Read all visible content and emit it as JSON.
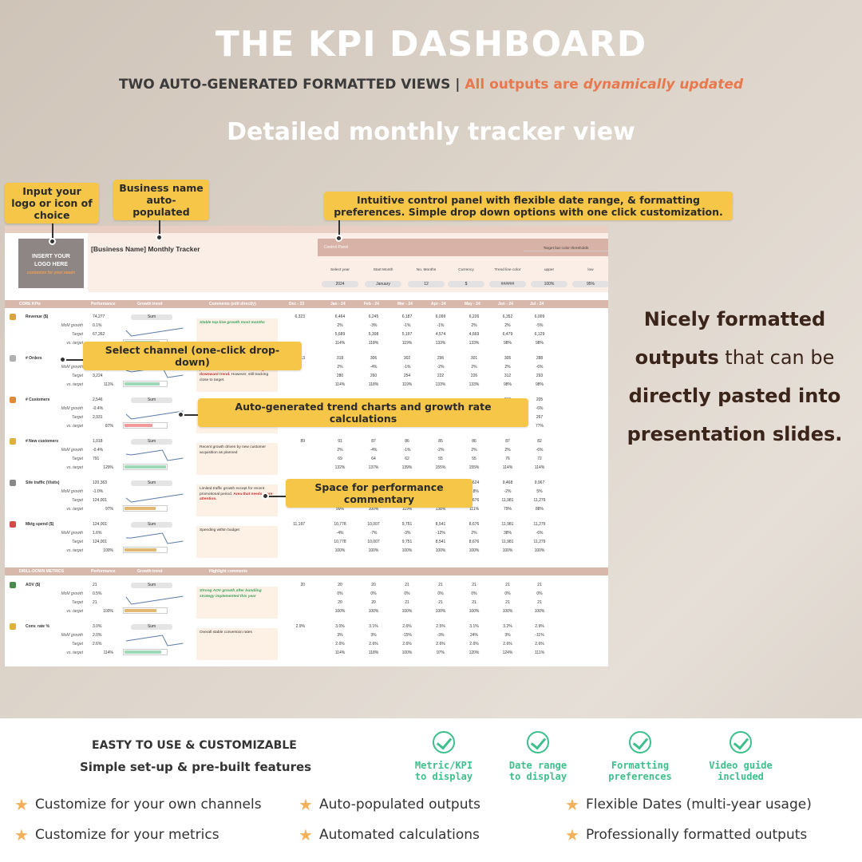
{
  "header": {
    "title": "THE KPI DASHBOARD",
    "subtitle_a": "TWO AUTO-GENERATED FORMATTED  VIEWS | ",
    "subtitle_b": "All outputs are ",
    "subtitle_c": "dynamically updated",
    "view_title": "Detailed monthly tracker view"
  },
  "callouts": {
    "logo": "Input your logo or icon of choice",
    "business": "Business name auto-populated",
    "control": "Intuitive control panel with flexible date range, & formatting preferences. Simple drop down options with one click customization.",
    "channel": "Select channel (one-click drop-down)",
    "trend": "Auto-generated trend charts and growth rate calculations",
    "commentary": "Space for performance commentary"
  },
  "sheet": {
    "logo_line1": "INSERT YOUR",
    "logo_line2": "LOGO HERE",
    "logo_small": "customize for your needs",
    "business_title": "[Business Name] Monthly Tracker",
    "control_panel": {
      "title": "Control Panel",
      "labels": [
        "Select year",
        "Start Month",
        "No. Months",
        "Currency",
        "Trend line color"
      ],
      "values": [
        "2024",
        "January",
        "12",
        "$",
        "######"
      ],
      "threshold_title": "Target bar color thresholds",
      "threshold_labels": [
        "upper",
        "low"
      ],
      "threshold_values": [
        "100%",
        "95%"
      ]
    },
    "core_header": [
      "CORE KPIs",
      "Performance",
      "Growth trend",
      "Comments (edit directly)",
      "Dec - 23",
      "Jan - 24",
      "Feb - 24",
      "Mar - 24",
      "Apr - 24",
      "May - 24",
      "Jun - 24",
      "Jul - 24"
    ],
    "drill_header": [
      "DRILL-DOWN METRICS",
      "Performance",
      "Growth trend",
      "Highlight comments"
    ],
    "sub_labels": [
      "MoM growth",
      "Target",
      "vs. target"
    ],
    "sum_label": "Sum",
    "kpis": [
      {
        "name": "Revenue ($)",
        "icon_color": "#d9a441",
        "perf": [
          "74,277",
          "0.1%",
          "67,262"
        ],
        "pct": 1.1,
        "pct_label": "",
        "dec": "6,323",
        "comment": [
          {
            "t": "Stable top-line growth most months",
            "c": "green"
          }
        ],
        "rows": [
          [
            "6,464",
            "6,245",
            "6,187",
            "6,099",
            "6,226",
            "6,352",
            "6,009"
          ],
          [
            "2%",
            "-3%",
            "-1%",
            "-1%",
            "2%",
            "2%",
            "-5%"
          ],
          [
            "5,689",
            "5,308",
            "5,197",
            "4,574",
            "4,669",
            "6,479",
            "6,129"
          ],
          [
            "114%",
            "118%",
            "119%",
            "133%",
            "133%",
            "98%",
            "98%"
          ]
        ],
        "bar_color": "#9fd9b6"
      },
      {
        "name": "# Orders",
        "icon_color": "#b0b0b0",
        "perf": [
          "3,564",
          "-0.4%",
          "3,224"
        ],
        "pct": 1.11,
        "pct_label": "111%",
        "dec": "313",
        "comment": [
          {
            "t": "Order uptake in October but driven by promotions but otherwise ",
            "c": ""
          },
          {
            "t": "concerning downward trend.",
            "c": "red"
          },
          {
            "t": " However, still tracking close to target.",
            "c": ""
          }
        ],
        "rows": [
          [
            "318",
            "306",
            "302",
            "296",
            "301",
            "305",
            "288"
          ],
          [
            "2%",
            "-4%",
            "-1%",
            "-2%",
            "2%",
            "2%",
            "-6%"
          ],
          [
            "280",
            "260",
            "254",
            "222",
            "226",
            "312",
            "293"
          ],
          [
            "114%",
            "118%",
            "119%",
            "133%",
            "133%",
            "98%",
            "98%"
          ]
        ],
        "bar_color": "#9fd9b6"
      },
      {
        "name": "# Customers",
        "icon_color": "#e08a3c",
        "perf": [
          "2,546",
          "-0.4%",
          "2,931"
        ],
        "pct": 0.87,
        "pct_label": "87%",
        "dec": "",
        "comment": [
          {
            "t": "focus on. Given new customers close to targets ",
            "c": ""
          },
          {
            "t": "problem is with retention.",
            "c": "red"
          }
        ],
        "rows": [
          [
            "",
            "",
            "",
            "",
            "",
            "218",
            "205"
          ],
          [
            "",
            "",
            "",
            "",
            "",
            "-2%",
            "-6%"
          ],
          [
            "255",
            "237",
            "230",
            "202",
            "205",
            "283",
            "267"
          ],
          [
            "89%",
            "92%",
            "94%",
            "105%",
            "105%",
            "77%",
            "77%"
          ]
        ],
        "bar_color": "#f29a9a"
      },
      {
        "name": "# New customers",
        "icon_color": "#e0b03c",
        "perf": [
          "1,018",
          "-0.4%",
          "791"
        ],
        "pct": 1.29,
        "pct_label": "129%",
        "dec": "89",
        "comment": [
          {
            "t": "Recent growth driven by new customer acquisition as planned",
            "c": ""
          }
        ],
        "rows": [
          [
            "91",
            "87",
            "86",
            "85",
            "86",
            "87",
            "82"
          ],
          [
            "2%",
            "-4%",
            "-1%",
            "-2%",
            "2%",
            "2%",
            "-6%"
          ],
          [
            "69",
            "64",
            "62",
            "55",
            "55",
            "76",
            "72"
          ],
          [
            "132%",
            "137%",
            "139%",
            "155%",
            "155%",
            "114%",
            "114%"
          ]
        ],
        "bar_color": "#9fd9b6"
      },
      {
        "name": "Site traffic (Visits)",
        "icon_color": "#888888",
        "perf": [
          "120,363",
          "-1.0%",
          "124,001"
        ],
        "pct": 0.97,
        "pct_label": "97%",
        "dec": "",
        "comment": [
          {
            "t": "Limited traffic growth except for recent promotional period. ",
            "c": ""
          },
          {
            "t": "Area that needs more attention.",
            "c": "red"
          }
        ],
        "rows": [
          [
            "",
            "",
            "",
            "",
            "9,624",
            "9,468",
            "9,967"
          ],
          [
            "",
            "",
            "",
            "",
            "-18%",
            "-2%",
            "5%"
          ],
          [
            "10,778",
            "10,007",
            "9,751",
            "8,541",
            "8,676",
            "11,981",
            "11,279"
          ],
          [
            "99%",
            "100%",
            "119%",
            "138%",
            "111%",
            "79%",
            "88%"
          ]
        ],
        "bar_color": "#e0b872"
      },
      {
        "name": "Mktg spend ($)",
        "icon_color": "#d04a4a",
        "perf": [
          "124,001",
          "1.6%",
          "124,001"
        ],
        "pct": 1.0,
        "pct_label": "100%",
        "dec": "11,197",
        "comment": [
          {
            "t": "Spending within budget",
            "c": ""
          }
        ],
        "rows": [
          [
            "10,778",
            "10,007",
            "9,751",
            "8,541",
            "8,676",
            "11,981",
            "11,279"
          ],
          [
            "-4%",
            "-7%",
            "-3%",
            "-12%",
            "2%",
            "38%",
            "-6%"
          ],
          [
            "10,778",
            "10,007",
            "9,751",
            "8,541",
            "8,676",
            "11,981",
            "11,279"
          ],
          [
            "100%",
            "100%",
            "100%",
            "100%",
            "100%",
            "100%",
            "100%"
          ]
        ],
        "bar_color": "#e0b872"
      }
    ],
    "drill": [
      {
        "name": "AOV ($)",
        "icon_color": "#4a8a4a",
        "perf": [
          "21",
          "0.5%",
          "21"
        ],
        "pct": 1.0,
        "pct_label": "100%",
        "dec": "20",
        "comment": [
          {
            "t": "Strong AOV growth after bundling strategy implemented this year",
            "c": "green"
          }
        ],
        "rows": [
          [
            "20",
            "20",
            "21",
            "21",
            "21",
            "21",
            "21"
          ],
          [
            "0%",
            "0%",
            "0%",
            "0%",
            "0%",
            "0%",
            "0%"
          ],
          [
            "20",
            "20",
            "21",
            "21",
            "21",
            "21",
            "21"
          ],
          [
            "100%",
            "100%",
            "100%",
            "100%",
            "100%",
            "100%",
            "100%"
          ]
        ],
        "bar_color": "#e0b872"
      },
      {
        "name": "Conv. rate %",
        "icon_color": "#e0b03c",
        "perf": [
          "3.0%",
          "2.0%",
          "2.6%"
        ],
        "pct": 1.14,
        "pct_label": "114%",
        "dec": "2.9%",
        "comment": [
          {
            "t": "Overall stable conversion rates",
            "c": ""
          }
        ],
        "rows": [
          [
            "3.0%",
            "3.1%",
            "2.6%",
            "2.5%",
            "3.1%",
            "3.2%",
            "2.9%"
          ],
          [
            "3%",
            "3%",
            "-15%",
            "-3%",
            "24%",
            "3%",
            "-11%"
          ],
          [
            "2.6%",
            "2.6%",
            "2.6%",
            "2.6%",
            "2.6%",
            "2.6%",
            "2.6%"
          ],
          [
            "114%",
            "118%",
            "100%",
            "97%",
            "120%",
            "124%",
            "111%"
          ]
        ],
        "bar_color": "#9fd9b6"
      }
    ]
  },
  "right_text": {
    "l1": "Nicely formatted",
    "l2a": "outputs",
    "l2b": " that can be",
    "l3": "directly pasted into",
    "l4": "presentation slides."
  },
  "bottom": {
    "title1": "EASTY TO USE & CUSTOMIZABLE",
    "title2": "Simple set-up & pre-built features",
    "checks": [
      {
        "l1": "Metric/KPI",
        "l2": "to display"
      },
      {
        "l1": "Date range",
        "l2": "to display"
      },
      {
        "l1": "Formatting",
        "l2": "preferences"
      },
      {
        "l1": "Video guide",
        "l2": "included"
      }
    ],
    "features": [
      "Customize for your own channels",
      "Auto-populated outputs",
      "Flexible Dates (multi-year usage)",
      "Customize for your metrics",
      "Automated calculations",
      "Professionally formatted outputs"
    ]
  },
  "colors": {
    "accent": "#e8784d",
    "callout": "#f6c649",
    "check": "#3dbf8b",
    "section": "#d9b8ac"
  }
}
